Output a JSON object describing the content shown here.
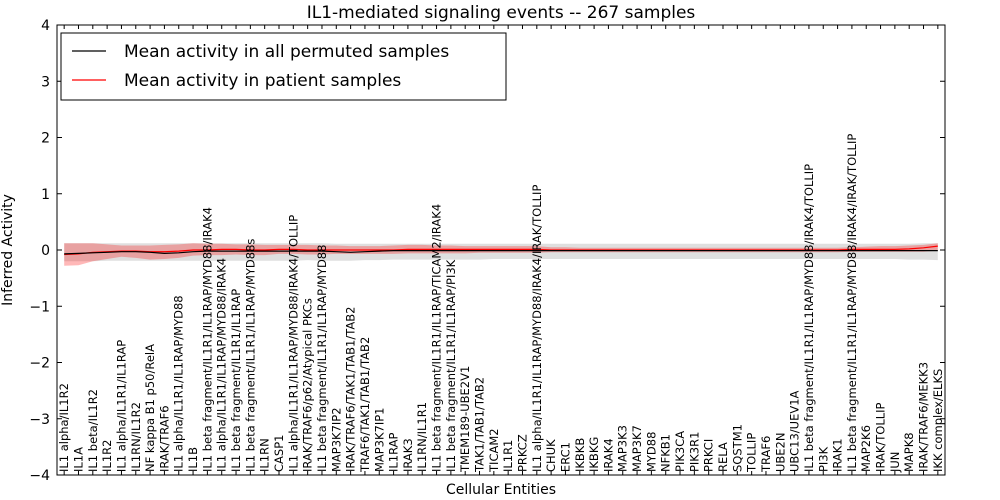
{
  "chart_data": {
    "type": "line",
    "title": "IL1-mediated signaling events -- 267 samples",
    "xlabel": "Cellular Entities",
    "ylabel": "Inferred Activity",
    "ylim": [
      -4,
      4
    ],
    "yticks": [
      -4,
      -3,
      -2,
      -1,
      0,
      1,
      2,
      3,
      4
    ],
    "ytick_labels": [
      "−4",
      "−3",
      "−2",
      "−1",
      "0",
      "1",
      "2",
      "3",
      "4"
    ],
    "legend_position": "top-left",
    "grid": false,
    "categories": [
      "IL1 alpha/IL1R2",
      "IL1A",
      "IL1 beta/IL1R2",
      "IL1R2",
      "IL1 alpha/IL1R1/IL1RAP",
      "IL1RN/IL1R2",
      "NF kappa B1 p50/RelA",
      "IRAK/TRAF6",
      "IL1 alpha/IL1R1/IL1RAP/MYD88",
      "IL1B",
      "IL1 beta fragment/IL1R1/IL1RAP/MYD88/IRAK4",
      "IL1 alpha/IL1R1/IL1RAP/MYD88/IRAK4",
      "IL1 beta fragment/IL1R1/IL1RAP",
      "IL1 beta fragment/IL1R1/IL1RAP/MYD88s",
      "IL1RN",
      "CASP1",
      "IL1 alpha/IL1R1/IL1RAP/MYD88/IRAK4/TOLLIP",
      "IRAK/TRAF6/p62/Atypical PKCs",
      "IL1 beta fragment/IL1R1/IL1RAP/MYD88",
      "MAP3K7IP2",
      "IRAK/TRAF6/TAK1/TAB1/TAB2",
      "TRAF6/TAK1/TAB1/TAB2",
      "MAP3K7IP1",
      "IL1RAP",
      "IRAK3",
      "IL1RN/IL1R1",
      "IL1 beta fragment/IL1R1/IL1RAP/TICAM2/IRAK4",
      "IL1 beta fragment/IL1R1/IL1RAP/PI3K",
      "TMEM189-UBE2V1",
      "TAK1/TAB1/TAB2",
      "TICAM2",
      "IL1R1",
      "PRKCZ",
      "IL1 alpha/IL1R1/IL1RAP/MYD88/IRAK4/IRAK/TOLLIP",
      "CHUK",
      "ERC1",
      "IKBKB",
      "IKBKG",
      "IRAK4",
      "MAP3K3",
      "MAP3K7",
      "MYD88",
      "NFKB1",
      "PIK3CA",
      "PIK3R1",
      "PRKCI",
      "RELA",
      "SQSTM1",
      "TOLLIP",
      "TRAF6",
      "UBE2N",
      "UBC13/UEV1A",
      "IL1 beta fragment/IL1R1/IL1RAP/MYD88/IRAK4/TOLLIP",
      "PI3K",
      "IRAK1",
      "IL1 beta fragment/IL1R1/IL1RAP/MYD88/IRAK4/IRAK/TOLLIP",
      "MAP2K6",
      "IRAK/TOLLIP",
      "JUN",
      "MAPK8",
      "IRAK/TRAF6/MEKK3",
      "IKK complex/ELKS"
    ],
    "series": [
      {
        "name": "Mean activity in all permuted samples",
        "color": "#000000",
        "values": [
          -0.07,
          -0.06,
          -0.05,
          -0.04,
          -0.03,
          -0.03,
          -0.04,
          -0.06,
          -0.05,
          -0.03,
          -0.02,
          -0.02,
          -0.02,
          -0.02,
          -0.02,
          -0.02,
          -0.02,
          -0.02,
          -0.02,
          -0.03,
          -0.04,
          -0.03,
          -0.02,
          -0.01,
          -0.01,
          -0.01,
          -0.01,
          -0.01,
          -0.01,
          -0.01,
          -0.01,
          -0.01,
          -0.01,
          -0.01,
          -0.01,
          -0.01,
          -0.01,
          -0.01,
          -0.01,
          -0.01,
          -0.01,
          -0.01,
          -0.01,
          -0.01,
          -0.01,
          -0.01,
          -0.01,
          -0.01,
          -0.01,
          -0.01,
          -0.01,
          -0.01,
          -0.01,
          -0.01,
          -0.01,
          -0.01,
          -0.01,
          -0.01,
          -0.01,
          -0.01,
          -0.01,
          -0.01
        ],
        "band_low": [
          -0.2,
          -0.2,
          -0.2,
          -0.19,
          -0.19,
          -0.19,
          -0.19,
          -0.19,
          -0.19,
          -0.19,
          -0.19,
          -0.19,
          -0.19,
          -0.19,
          -0.19,
          -0.19,
          -0.19,
          -0.18,
          -0.19,
          -0.19,
          -0.19,
          -0.18,
          -0.18,
          -0.17,
          -0.17,
          -0.17,
          -0.17,
          -0.17,
          -0.17,
          -0.17,
          -0.16,
          -0.16,
          -0.16,
          -0.16,
          -0.16,
          -0.16,
          -0.16,
          -0.16,
          -0.16,
          -0.16,
          -0.16,
          -0.16,
          -0.16,
          -0.16,
          -0.16,
          -0.16,
          -0.16,
          -0.16,
          -0.16,
          -0.16,
          -0.16,
          -0.16,
          -0.16,
          -0.16,
          -0.16,
          -0.16,
          -0.16,
          -0.16,
          -0.16,
          -0.17,
          -0.17,
          -0.18
        ],
        "band_high": [
          0.12,
          0.12,
          0.12,
          0.12,
          0.12,
          0.12,
          0.12,
          0.12,
          0.12,
          0.12,
          0.12,
          0.12,
          0.12,
          0.12,
          0.12,
          0.12,
          0.12,
          0.12,
          0.12,
          0.11,
          0.11,
          0.11,
          0.11,
          0.11,
          0.11,
          0.11,
          0.11,
          0.11,
          0.11,
          0.11,
          0.11,
          0.11,
          0.11,
          0.11,
          0.11,
          0.11,
          0.11,
          0.11,
          0.11,
          0.11,
          0.11,
          0.11,
          0.11,
          0.11,
          0.11,
          0.11,
          0.11,
          0.11,
          0.11,
          0.11,
          0.11,
          0.11,
          0.11,
          0.11,
          0.11,
          0.11,
          0.11,
          0.11,
          0.11,
          0.11,
          0.12,
          0.12
        ]
      },
      {
        "name": "Mean activity in patient samples",
        "color": "#ff0000",
        "values": [
          -0.08,
          -0.07,
          -0.04,
          -0.03,
          -0.02,
          -0.02,
          -0.03,
          -0.03,
          -0.02,
          0.0,
          0.0,
          0.01,
          0.01,
          0.0,
          0.0,
          0.01,
          0.01,
          0.0,
          0.0,
          0.0,
          0.0,
          0.0,
          0.0,
          0.0,
          0.01,
          0.01,
          0.01,
          0.01,
          0.01,
          0.01,
          0.01,
          0.01,
          0.01,
          0.01,
          0.0,
          0.0,
          0.0,
          0.0,
          0.0,
          0.0,
          0.0,
          0.0,
          0.0,
          0.0,
          0.0,
          0.0,
          0.0,
          0.0,
          0.0,
          0.0,
          0.0,
          0.0,
          0.0,
          0.0,
          0.0,
          0.01,
          0.01,
          0.01,
          0.01,
          0.02,
          0.04,
          0.07
        ],
        "band_low": [
          -0.28,
          -0.27,
          -0.2,
          -0.16,
          -0.12,
          -0.14,
          -0.17,
          -0.16,
          -0.14,
          -0.1,
          -0.09,
          -0.09,
          -0.08,
          -0.09,
          -0.09,
          -0.07,
          -0.07,
          -0.08,
          -0.08,
          -0.07,
          -0.07,
          -0.07,
          -0.07,
          -0.07,
          -0.06,
          -0.06,
          -0.06,
          -0.06,
          -0.06,
          -0.05,
          -0.05,
          -0.05,
          -0.05,
          -0.05,
          -0.04,
          -0.04,
          -0.04,
          -0.04,
          -0.04,
          -0.04,
          -0.04,
          -0.04,
          -0.04,
          -0.04,
          -0.04,
          -0.04,
          -0.04,
          -0.04,
          -0.04,
          -0.04,
          -0.04,
          -0.04,
          -0.04,
          -0.04,
          -0.04,
          -0.03,
          -0.03,
          -0.03,
          -0.03,
          -0.03,
          -0.03,
          -0.01
        ],
        "band_high": [
          0.12,
          0.12,
          0.12,
          0.1,
          0.08,
          0.08,
          0.08,
          0.09,
          0.1,
          0.12,
          0.11,
          0.11,
          0.1,
          0.1,
          0.09,
          0.09,
          0.09,
          0.09,
          0.08,
          0.08,
          0.07,
          0.07,
          0.07,
          0.08,
          0.09,
          0.09,
          0.08,
          0.08,
          0.07,
          0.07,
          0.07,
          0.07,
          0.07,
          0.07,
          0.05,
          0.05,
          0.04,
          0.04,
          0.04,
          0.04,
          0.04,
          0.04,
          0.04,
          0.04,
          0.04,
          0.04,
          0.04,
          0.04,
          0.04,
          0.04,
          0.04,
          0.04,
          0.04,
          0.04,
          0.04,
          0.05,
          0.06,
          0.07,
          0.07,
          0.08,
          0.09,
          0.12
        ]
      }
    ]
  }
}
